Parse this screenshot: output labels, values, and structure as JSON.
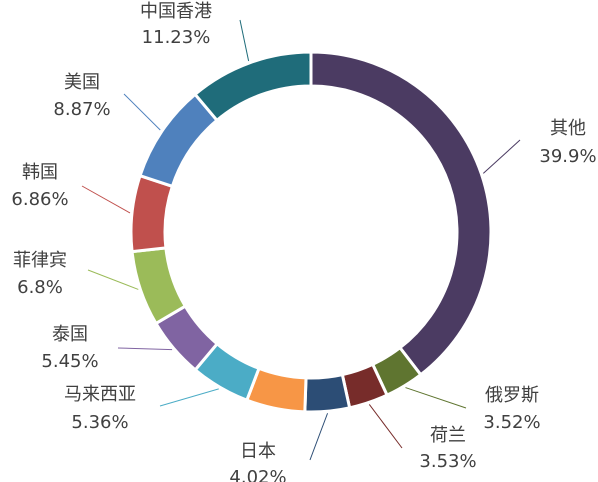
{
  "chart_data": {
    "type": "pie",
    "variant": "donut",
    "title": "",
    "legend": "none",
    "slices": [
      {
        "name": "其他",
        "value": 39.9,
        "value_label": "39.9%",
        "color": "#4b3b62"
      },
      {
        "name": "俄罗斯",
        "value": 3.52,
        "value_label": "3.52%",
        "color": "#5f7530"
      },
      {
        "name": "荷兰",
        "value": 3.53,
        "value_label": "3.53%",
        "color": "#772c2a"
      },
      {
        "name": "日本",
        "value": 4.02,
        "value_label": "4.02%",
        "color": "#2c4d75"
      },
      {
        "name": "",
        "value": 5.3,
        "value_label": "",
        "color": "#f79646"
      },
      {
        "name": "马来西亚",
        "value": 5.36,
        "value_label": "5.36%",
        "color": "#4bacc6"
      },
      {
        "name": "泰国",
        "value": 5.45,
        "value_label": "5.45%",
        "color": "#8064a2"
      },
      {
        "name": "菲律宾",
        "value": 6.8,
        "value_label": "6.8%",
        "color": "#9bbb59"
      },
      {
        "name": "韩国",
        "value": 6.86,
        "value_label": "6.86%",
        "color": "#c0504d"
      },
      {
        "name": "美国",
        "value": 8.87,
        "value_label": "8.87%",
        "color": "#4f81bd"
      },
      {
        "name": "中国香港",
        "value": 11.23,
        "value_label": "11.23%",
        "color": "#1f6c7a"
      }
    ]
  }
}
